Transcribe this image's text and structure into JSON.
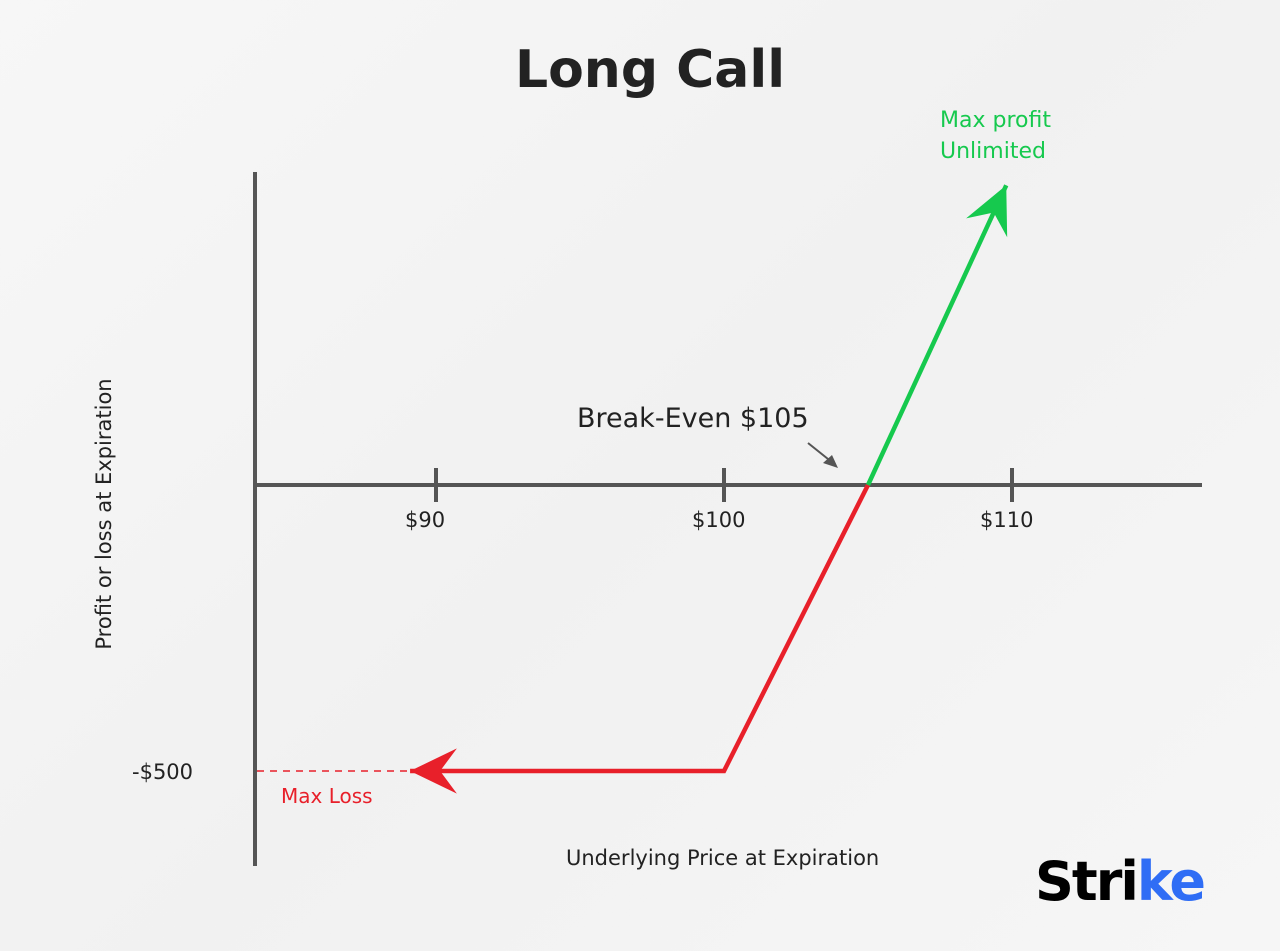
{
  "chart_data": {
    "type": "line",
    "title": "Long Call",
    "xlabel": "Underlying Price at Expiration",
    "ylabel": "Profit or loss at Expiration",
    "x_ticks": [
      {
        "value": 90,
        "label": "$90"
      },
      {
        "value": 100,
        "label": "$100"
      },
      {
        "value": 110,
        "label": "$110"
      }
    ],
    "y_ticks": [
      {
        "value": -500,
        "label": "-$500"
      }
    ],
    "xlim": [
      83.7,
      116.5
    ],
    "ylim": [
      -660,
      545
    ],
    "series": [
      {
        "segment": "loss",
        "color": "#e8202a",
        "points": [
          [
            89.1,
            -500
          ],
          [
            100,
            -500
          ],
          [
            105,
            0
          ]
        ]
      },
      {
        "segment": "profit",
        "color": "#16c94e",
        "points": [
          [
            105,
            0
          ],
          [
            109.8,
            524
          ]
        ]
      }
    ],
    "annotations": {
      "break_even": "Break-Even $105",
      "max_profit_line1": "Max profit",
      "max_profit_line2": "Unlimited",
      "max_loss": "Max Loss"
    },
    "colors": {
      "loss": "#e8202a",
      "profit": "#16c94e",
      "axis": "#555555"
    }
  },
  "logo": {
    "text_main": "Stri",
    "text_accent": "ke"
  }
}
